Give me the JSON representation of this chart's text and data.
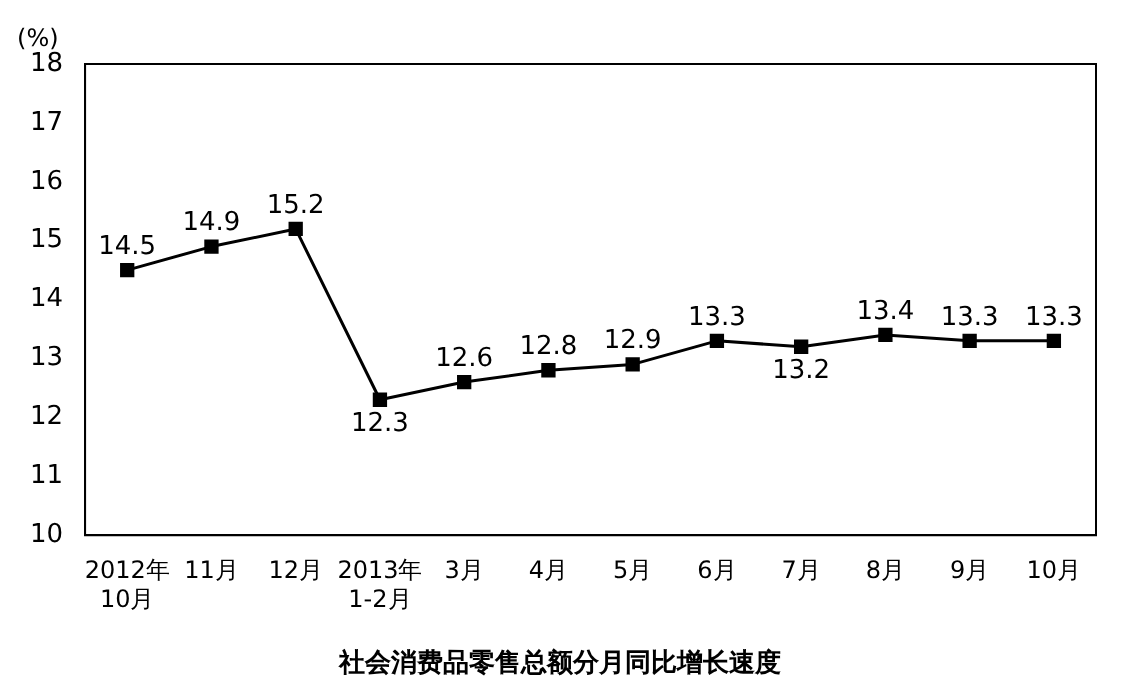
{
  "chart_data": {
    "type": "line",
    "title": "社会消费品零售总额分月同比增长速度",
    "ylabel": "(%)",
    "categories": [
      "2012年\n10月",
      "11月",
      "12月",
      "2013年\n1-2月",
      "3月",
      "4月",
      "5月",
      "6月",
      "7月",
      "8月",
      "9月",
      "10月"
    ],
    "series": [
      {
        "color": "#000000",
        "values": [
          14.5,
          14.9,
          15.2,
          12.3,
          12.6,
          12.8,
          12.9,
          13.3,
          13.2,
          13.4,
          13.3,
          13.3
        ]
      }
    ],
    "ylim": [
      10,
      18
    ],
    "yticks": [
      10,
      11,
      12,
      13,
      14,
      15,
      16,
      17,
      18
    ],
    "grid": false,
    "legend": false,
    "marker": "square",
    "line_style": "solid",
    "data_labels": true
  }
}
